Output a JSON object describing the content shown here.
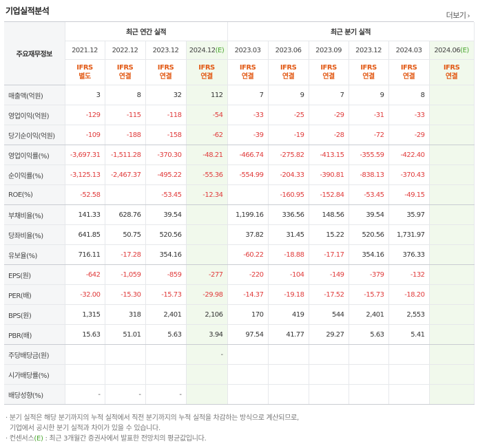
{
  "header": {
    "title": "기업실적분석",
    "more_label": "더보기"
  },
  "table": {
    "label_header": "주요재무정보",
    "groups": {
      "annual": "최근 연간 실적",
      "quarterly": "최근 분기 실적"
    },
    "annual_periods": [
      "2021.12",
      "2022.12",
      "2023.12",
      "2024.12(E)"
    ],
    "quarterly_periods": [
      "2023.03",
      "2023.06",
      "2023.09",
      "2023.12",
      "2024.03",
      "2024.06(E)"
    ],
    "basis": [
      {
        "top": "IFRS",
        "bottom": "별도"
      },
      {
        "top": "IFRS",
        "bottom": "연결"
      },
      {
        "top": "IFRS",
        "bottom": "연결"
      },
      {
        "top": "IFRS",
        "bottom": "연결"
      },
      {
        "top": "IFRS",
        "bottom": "연결"
      },
      {
        "top": "IFRS",
        "bottom": "연결"
      },
      {
        "top": "IFRS",
        "bottom": "연결"
      },
      {
        "top": "IFRS",
        "bottom": "연결"
      },
      {
        "top": "IFRS",
        "bottom": "연결"
      },
      {
        "top": "IFRS",
        "bottom": "연결"
      }
    ],
    "rows": [
      {
        "label": "매출액(억원)",
        "values": [
          "3",
          "8",
          "32",
          "112",
          "7",
          "9",
          "7",
          "9",
          "8",
          ""
        ]
      },
      {
        "label": "영업이익(억원)",
        "values": [
          "-129",
          "-115",
          "-118",
          "-54",
          "-33",
          "-25",
          "-29",
          "-31",
          "-33",
          ""
        ]
      },
      {
        "label": "당기순이익(억원)",
        "values": [
          "-109",
          "-188",
          "-158",
          "-62",
          "-39",
          "-19",
          "-28",
          "-72",
          "-29",
          ""
        ]
      },
      {
        "label": "영업이익률(%)",
        "values": [
          "-3,697.31",
          "-1,511.28",
          "-370.30",
          "-48.21",
          "-466.74",
          "-275.82",
          "-413.15",
          "-355.59",
          "-422.40",
          ""
        ]
      },
      {
        "label": "순이익률(%)",
        "values": [
          "-3,125.13",
          "-2,467.37",
          "-495.22",
          "-55.36",
          "-554.99",
          "-204.33",
          "-390.81",
          "-838.13",
          "-370.43",
          ""
        ]
      },
      {
        "label": "ROE(%)",
        "values": [
          "-52.58",
          "",
          "-53.45",
          "-12.34",
          "",
          "-160.95",
          "-152.84",
          "-53.45",
          "-49.15",
          ""
        ]
      },
      {
        "label": "부채비율(%)",
        "values": [
          "141.33",
          "628.76",
          "39.54",
          "",
          "1,199.16",
          "336.56",
          "148.56",
          "39.54",
          "35.97",
          ""
        ]
      },
      {
        "label": "당좌비율(%)",
        "values": [
          "641.85",
          "50.75",
          "520.56",
          "",
          "37.82",
          "31.45",
          "15.22",
          "520.56",
          "1,731.97",
          ""
        ]
      },
      {
        "label": "유보율(%)",
        "values": [
          "716.11",
          "-17.28",
          "354.16",
          "",
          "-60.22",
          "-18.88",
          "-17.17",
          "354.16",
          "376.33",
          ""
        ]
      },
      {
        "label": "EPS(원)",
        "values": [
          "-642",
          "-1,059",
          "-859",
          "-277",
          "-220",
          "-104",
          "-149",
          "-379",
          "-132",
          ""
        ]
      },
      {
        "label": "PER(배)",
        "values": [
          "-32.00",
          "-15.30",
          "-15.73",
          "-29.98",
          "-14.37",
          "-19.18",
          "-17.52",
          "-15.73",
          "-18.20",
          ""
        ]
      },
      {
        "label": "BPS(원)",
        "values": [
          "1,315",
          "318",
          "2,401",
          "2,106",
          "170",
          "419",
          "544",
          "2,401",
          "2,553",
          ""
        ]
      },
      {
        "label": "PBR(배)",
        "values": [
          "15.63",
          "51.01",
          "5.63",
          "3.94",
          "97.54",
          "41.77",
          "29.27",
          "5.63",
          "5.41",
          ""
        ]
      },
      {
        "label": "주당배당금(원)",
        "values": [
          "",
          "",
          "",
          "-",
          "",
          "",
          "",
          "",
          "",
          ""
        ]
      },
      {
        "label": "시가배당률(%)",
        "values": [
          "",
          "",
          "",
          "",
          "",
          "",
          "",
          "",
          "",
          ""
        ]
      },
      {
        "label": "배당성향(%)",
        "values": [
          "-",
          "-",
          "-",
          "",
          "",
          "",
          "",
          "",
          "",
          ""
        ]
      }
    ]
  },
  "notes": [
    "· 분기 실적은 해당 분기까지의 누적 실적에서 직전 분기까지의 누적 실적을 차감하는 방식으로 계산되므로,",
    "  기업에서 공시한 분기 실적과 차이가 있을 수 있습니다.",
    "· 컨센서스(E) : 최근 3개월간 증권사에서 발표한 전망치의 평균값입니다."
  ],
  "colors": {
    "negative": "#e03b3b",
    "basis": "#e25a16",
    "estimate_bg": "#f1f9ec",
    "label_bg": "#f5f6f7"
  }
}
